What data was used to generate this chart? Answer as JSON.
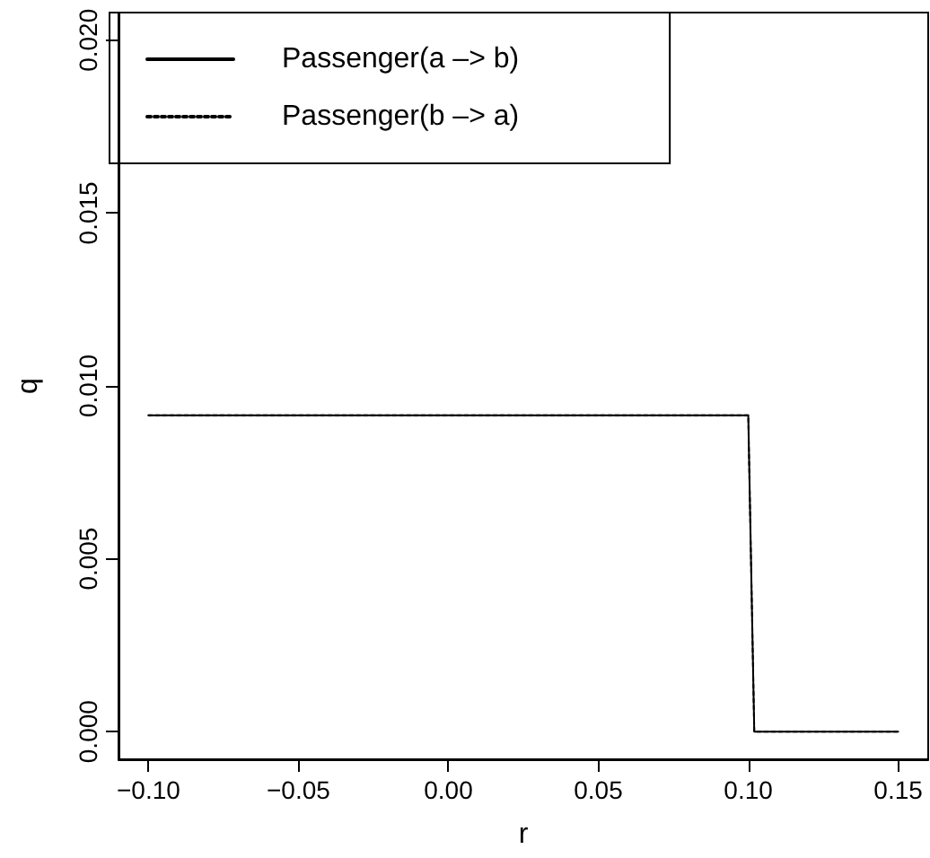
{
  "chart_data": {
    "type": "line",
    "xlabel": "r",
    "ylabel": "q",
    "legend": "top left",
    "xlim": [
      -0.11,
      0.16
    ],
    "ylim": [
      -0.0008,
      0.0208
    ],
    "xticks": [
      {
        "value": -0.1,
        "label": "−0.10"
      },
      {
        "value": -0.05,
        "label": "−0.05"
      },
      {
        "value": 0,
        "label": "0.00"
      },
      {
        "value": 0.05,
        "label": "0.05"
      },
      {
        "value": 0.1,
        "label": "0.10"
      },
      {
        "value": 0.15,
        "label": "0.15"
      }
    ],
    "yticks": [
      {
        "value": 0,
        "label": "0.000"
      },
      {
        "value": 0.005,
        "label": "0.005"
      },
      {
        "value": 0.01,
        "label": "0.010"
      },
      {
        "value": 0.015,
        "label": "0.015"
      },
      {
        "value": 0.02,
        "label": "0.020"
      }
    ],
    "grid": false,
    "marker": "none",
    "series": [
      {
        "name": "Passenger(a –> b)",
        "color": "#000000",
        "line_style": "solid",
        "x": [
          -0.1,
          0.1,
          0.102,
          0.15
        ],
        "values": [
          0.00915,
          0.00915,
          0,
          0
        ]
      },
      {
        "name": "Passenger(b –> a)",
        "color": "#000000",
        "line_style": "dotted",
        "x": [
          -0.1,
          0.1,
          0.102,
          0.15
        ],
        "values": [
          0.00915,
          0.00915,
          0,
          0
        ]
      }
    ]
  }
}
